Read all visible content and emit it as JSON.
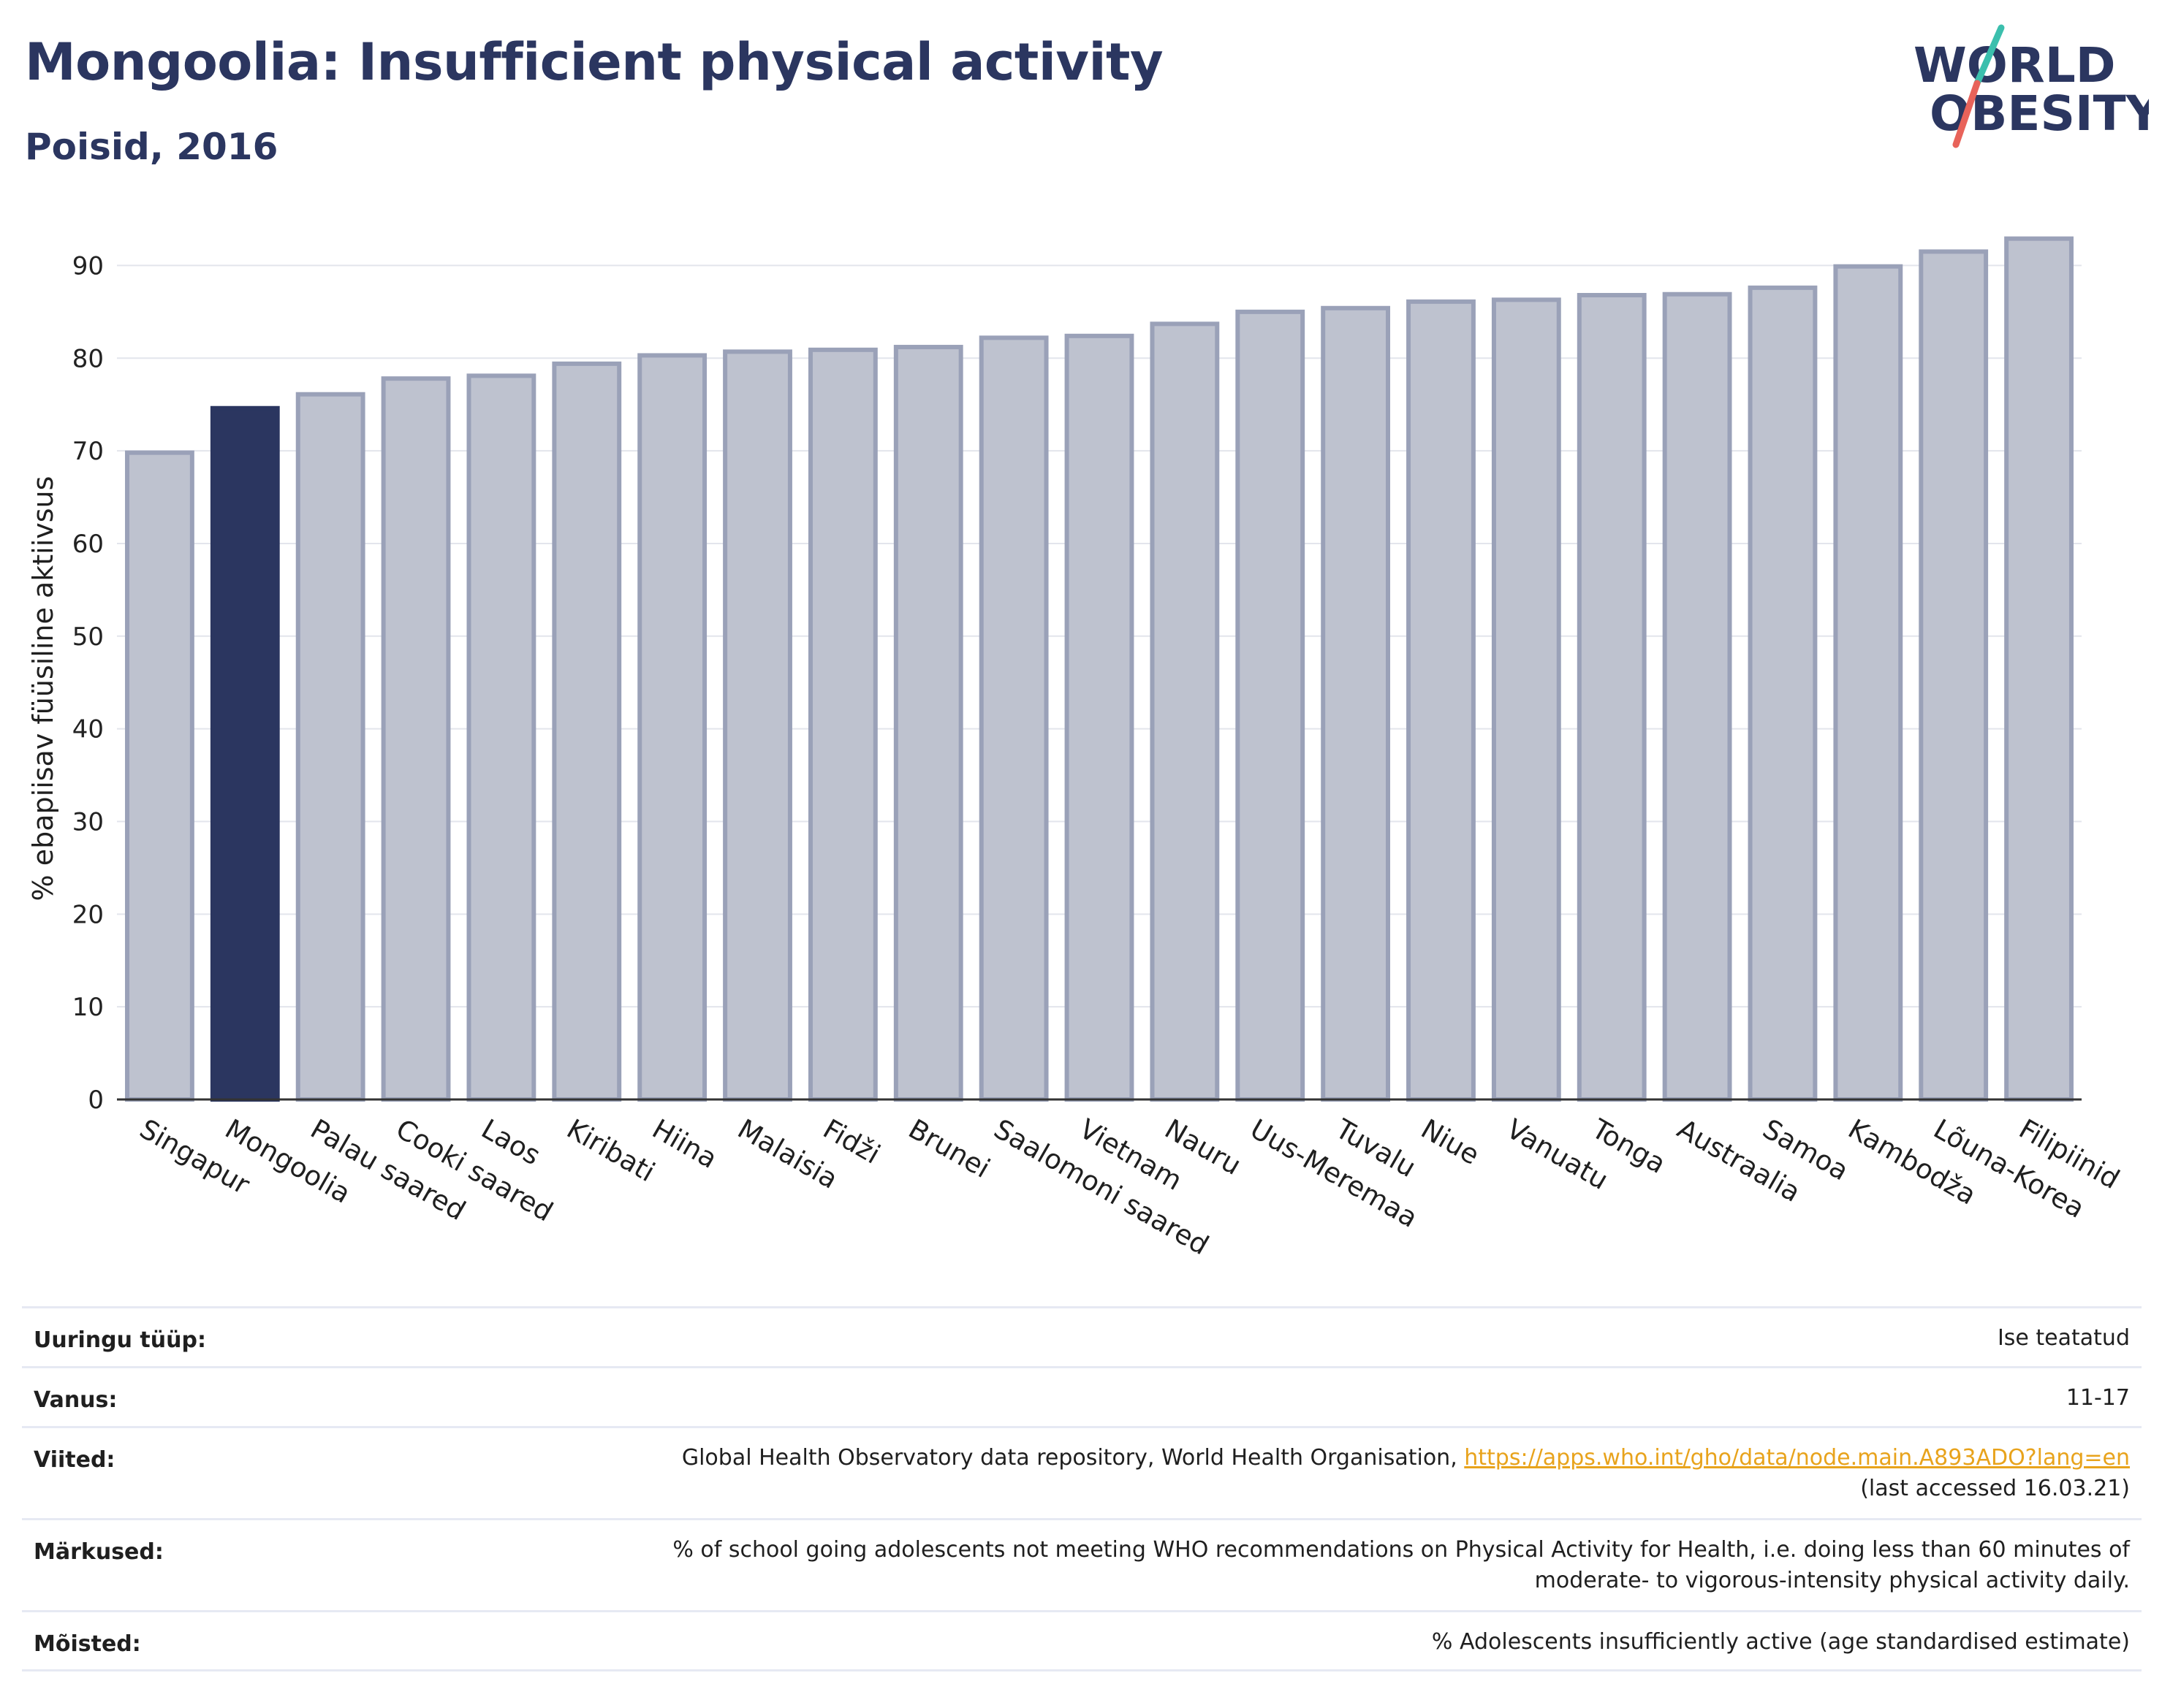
{
  "header": {
    "title": "Mongoolia: Insufficient physical activity",
    "subtitle": "Poisid, 2016"
  },
  "logo": {
    "line1": "WORLD",
    "line2": "OBESITY",
    "color_text": "#2b3660",
    "color_slash_top": "#3bbfad",
    "color_slash_bottom": "#e8635a"
  },
  "chart_data": {
    "type": "bar",
    "ylabel": "% ebapiisav füüsiline aktiivsus",
    "ylim": [
      0,
      95
    ],
    "yticks": [
      0,
      10,
      20,
      30,
      40,
      50,
      60,
      70,
      80,
      90
    ],
    "grid": true,
    "highlight": "Mongoolia",
    "colors": {
      "bar": "#bec2cf",
      "bar_edge": "#9aa1b8",
      "highlight": "#2b3660",
      "grid": "#e3e5ec",
      "axis": "#333333"
    },
    "categories": [
      "Singapur",
      "Mongoolia",
      "Palau saared",
      "Cooki saared",
      "Laos",
      "Kiribati",
      "Hiina",
      "Malaisia",
      "Fidži",
      "Brunei",
      "Saalomoni saared",
      "Vietnam",
      "Nauru",
      "Uus-Meremaa",
      "Tuvalu",
      "Niue",
      "Vanuatu",
      "Tonga",
      "Austraalia",
      "Samoa",
      "Kambodža",
      "Lõuna-Korea",
      "Filipiinid"
    ],
    "values": [
      69.8,
      74.6,
      76.1,
      77.8,
      78.1,
      79.4,
      80.3,
      80.7,
      80.9,
      81.2,
      82.2,
      82.4,
      83.7,
      85.0,
      85.4,
      86.1,
      86.3,
      86.8,
      86.9,
      87.6,
      89.9,
      91.5,
      92.9
    ]
  },
  "meta": {
    "rows": [
      {
        "label": "Uuringu tüüp:",
        "value": "Ise teatatud"
      },
      {
        "label": "Vanus:",
        "value": "11-17"
      },
      {
        "label": "Viited:",
        "value_prefix": "Global Health Observatory data repository, World Health Organisation, ",
        "link": "https://apps.who.int/gho/data/node.main.A893ADO?lang=en",
        "value_suffix": "(last accessed 16.03.21)"
      },
      {
        "label": "Märkused:",
        "value_line1": "% of school going adolescents not meeting WHO recommendations on Physical Activity for Health, i.e. doing less than 60 minutes of",
        "value_line2": "moderate- to vigorous-intensity physical activity daily."
      },
      {
        "label": "Mõisted:",
        "value": "% Adolescents insufficiently active (age standardised estimate)"
      }
    ]
  }
}
